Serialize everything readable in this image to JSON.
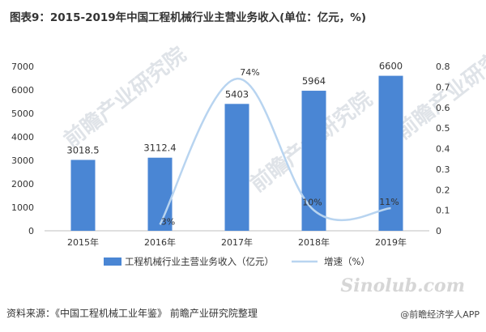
{
  "title": "图表9：2015-2019年中国工程机械行业主营业务收入(单位：亿元，%)",
  "source": "资料来源：《中国工程机械工业年鉴》 前瞻产业研究院整理",
  "watermark": "前瞻产业研究院",
  "brand": {
    "logo_text": "Sinolub.com",
    "handle": "@前瞻经济学人APP"
  },
  "colors": {
    "bar": "#4a86d4",
    "line": "#b8d4f0",
    "text": "#333333",
    "axis": "#bfbfbf"
  },
  "chart_data": {
    "type": "bar",
    "categories": [
      "2015年",
      "2016年",
      "2017年",
      "2018年",
      "2019年"
    ],
    "series": [
      {
        "name": "工程机械行业主营业务收入（亿元）",
        "type": "bar",
        "axis": "left",
        "values": [
          3018.5,
          3112.4,
          5403,
          5964,
          6600
        ],
        "labels": [
          "3018.5",
          "3112.4",
          "5403",
          "5964",
          "6600"
        ]
      },
      {
        "name": "增速（%）",
        "type": "line",
        "axis": "right",
        "values": [
          null,
          0.03,
          0.74,
          0.1,
          0.11
        ],
        "labels": [
          "",
          "3%",
          "74%",
          "10%",
          "11%"
        ]
      }
    ],
    "y_left": {
      "min": 0,
      "max": 7000,
      "step": 1000,
      "ticks": [
        "0",
        "1000",
        "2000",
        "3000",
        "4000",
        "5000",
        "6000",
        "7000"
      ]
    },
    "y_right": {
      "min": 0,
      "max": 0.8,
      "step": 0.1,
      "ticks": [
        "0",
        "0.1",
        "0.2",
        "0.3",
        "0.4",
        "0.5",
        "0.6",
        "0.7",
        "0.8"
      ]
    },
    "legend_position": "bottom",
    "grid": false
  }
}
